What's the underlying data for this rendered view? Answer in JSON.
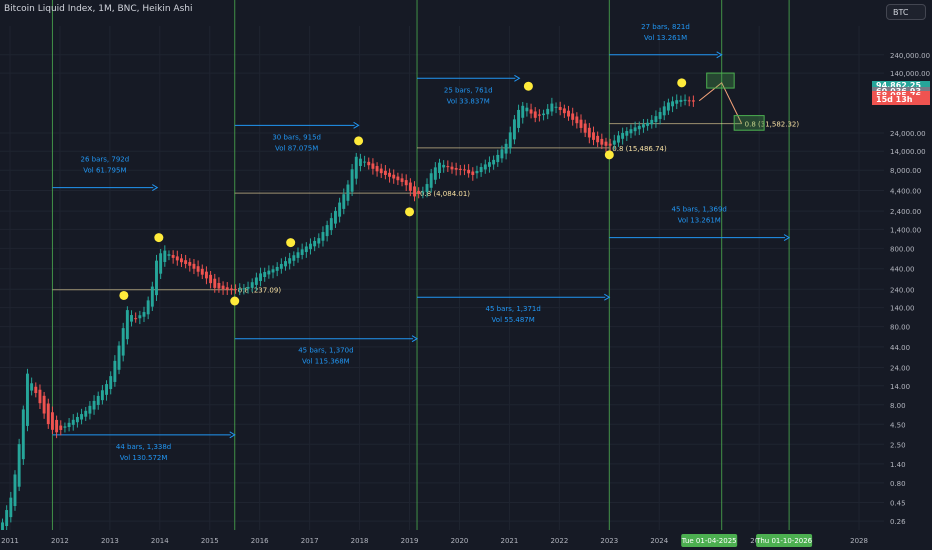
{
  "header": {
    "title": "Bitcoin Liquid Index, 1M, BNC, Heikin Ashi"
  },
  "symbol_button": "BTC",
  "colors": {
    "background": "#161a25",
    "grid": "#1f2430",
    "up": "#26a69a",
    "down": "#ef5350",
    "cycle_line": "#4caf50",
    "arrow": "#2196f3",
    "marker": "#ffeb3b",
    "fib": "#f7e0a3",
    "projection": "#f6a37a"
  },
  "price_tags": [
    {
      "text": "94,862.25",
      "color": "#26a69a"
    },
    {
      "text": "60,036.93",
      "color": "#787b86"
    },
    {
      "text": "58,085.76",
      "color": "#ef5350"
    },
    {
      "text": "15d 13h",
      "color": "#ef5350"
    }
  ],
  "chart_data": {
    "type": "candlestick",
    "title": "Bitcoin Liquid Index, 1M, BNC, Heikin Ashi",
    "y_scale": "log",
    "ylim": [
      0.2,
      560000
    ],
    "xlim": [
      2010.8,
      2028.5
    ],
    "x_ticks": [
      {
        "label": "2011",
        "x": 2011
      },
      {
        "label": "2012",
        "x": 2012
      },
      {
        "label": "2013",
        "x": 2013
      },
      {
        "label": "2014",
        "x": 2014
      },
      {
        "label": "2015",
        "x": 2015
      },
      {
        "label": "2016",
        "x": 2016
      },
      {
        "label": "2017",
        "x": 2017
      },
      {
        "label": "2018",
        "x": 2018
      },
      {
        "label": "2019",
        "x": 2019
      },
      {
        "label": "2020",
        "x": 2020
      },
      {
        "label": "2021",
        "x": 2021
      },
      {
        "label": "2022",
        "x": 2022
      },
      {
        "label": "2023",
        "x": 2023
      },
      {
        "label": "2024",
        "x": 2024
      },
      {
        "label": "2026",
        "x": 2026
      },
      {
        "label": "2028",
        "x": 2028
      }
    ],
    "x_tag_labels": [
      {
        "label": "Tue 01-04-2025",
        "x": 2025.0
      },
      {
        "label": "Thu 01-10-2026",
        "x": 2026.5
      }
    ],
    "y_ticks": [
      {
        "label": "240,000.00",
        "v": 240000
      },
      {
        "label": "140,000.00",
        "v": 140000
      },
      {
        "label": "24,000.00",
        "v": 24000
      },
      {
        "label": "14,000.00",
        "v": 14000
      },
      {
        "label": "8,000.00",
        "v": 8000
      },
      {
        "label": "4,400.00",
        "v": 4400
      },
      {
        "label": "2,400.00",
        "v": 2400
      },
      {
        "label": "1,400.00",
        "v": 1400
      },
      {
        "label": "800.00",
        "v": 800
      },
      {
        "label": "440.00",
        "v": 440
      },
      {
        "label": "240.00",
        "v": 240
      },
      {
        "label": "140.00",
        "v": 140
      },
      {
        "label": "80.00",
        "v": 80
      },
      {
        "label": "44.00",
        "v": 44
      },
      {
        "label": "24.00",
        "v": 24
      },
      {
        "label": "14.00",
        "v": 14
      },
      {
        "label": "8.00",
        "v": 8
      },
      {
        "label": "4.50",
        "v": 4.5
      },
      {
        "label": "2.50",
        "v": 2.5
      },
      {
        "label": "1.40",
        "v": 1.4
      },
      {
        "label": "0.80",
        "v": 0.8
      },
      {
        "label": "0.45",
        "v": 0.45
      },
      {
        "label": "0.26",
        "v": 0.26
      }
    ],
    "price_keypoints": [
      [
        2010.85,
        0.25
      ],
      [
        2011.05,
        0.6
      ],
      [
        2011.2,
        3
      ],
      [
        2011.35,
        20
      ],
      [
        2011.5,
        12
      ],
      [
        2011.65,
        7
      ],
      [
        2011.8,
        4
      ],
      [
        2011.95,
        3.5
      ],
      [
        2012.2,
        4.8
      ],
      [
        2012.5,
        6.5
      ],
      [
        2012.8,
        11
      ],
      [
        2013.0,
        17
      ],
      [
        2013.2,
        50
      ],
      [
        2013.35,
        130
      ],
      [
        2013.5,
        100
      ],
      [
        2013.7,
        125
      ],
      [
        2013.85,
        260
      ],
      [
        2013.95,
        650
      ],
      [
        2014.1,
        750
      ],
      [
        2014.3,
        580
      ],
      [
        2014.6,
        480
      ],
      [
        2014.9,
        350
      ],
      [
        2015.1,
        250
      ],
      [
        2015.4,
        235
      ],
      [
        2015.55,
        240
      ],
      [
        2015.75,
        250
      ],
      [
        2016.0,
        380
      ],
      [
        2016.3,
        440
      ],
      [
        2016.6,
        600
      ],
      [
        2016.9,
        820
      ],
      [
        2017.2,
        1100
      ],
      [
        2017.5,
        2300
      ],
      [
        2017.75,
        4800
      ],
      [
        2017.92,
        12000
      ],
      [
        2018.05,
        11000
      ],
      [
        2018.3,
        8000
      ],
      [
        2018.6,
        6600
      ],
      [
        2018.9,
        5500
      ],
      [
        2019.1,
        3700
      ],
      [
        2019.3,
        4400
      ],
      [
        2019.45,
        7800
      ],
      [
        2019.6,
        10000
      ],
      [
        2019.85,
        8200
      ],
      [
        2020.1,
        8000
      ],
      [
        2020.25,
        6800
      ],
      [
        2020.45,
        9000
      ],
      [
        2020.7,
        11000
      ],
      [
        2020.95,
        18000
      ],
      [
        2021.15,
        45000
      ],
      [
        2021.3,
        56000
      ],
      [
        2021.5,
        37000
      ],
      [
        2021.7,
        43000
      ],
      [
        2021.85,
        57000
      ],
      [
        2022.1,
        43000
      ],
      [
        2022.35,
        32000
      ],
      [
        2022.6,
        21000
      ],
      [
        2022.85,
        17000
      ],
      [
        2023.0,
        16000
      ],
      [
        2023.2,
        23000
      ],
      [
        2023.5,
        28000
      ],
      [
        2023.8,
        33000
      ],
      [
        2024.0,
        43000
      ],
      [
        2024.15,
        58000
      ],
      [
        2024.35,
        63000
      ],
      [
        2024.55,
        64000
      ],
      [
        2024.7,
        60000
      ],
      [
        2024.75,
        58085
      ]
    ],
    "cycle_lines_x": [
      2011.85,
      2015.5,
      2019.15,
      2023.0,
      2025.25,
      2026.6
    ],
    "markers": [
      {
        "x": 2013.28,
        "v": 200
      },
      {
        "x": 2013.98,
        "v": 1100
      },
      {
        "x": 2015.5,
        "v": 170
      },
      {
        "x": 2016.62,
        "v": 950
      },
      {
        "x": 2017.98,
        "v": 19000
      },
      {
        "x": 2019.0,
        "v": 2350
      },
      {
        "x": 2021.38,
        "v": 95000
      },
      {
        "x": 2023.0,
        "v": 12600
      },
      {
        "x": 2024.45,
        "v": 105000
      }
    ],
    "fib_levels": [
      {
        "label": "0.8 (237.09)",
        "v": 237.09,
        "x0": 2011.85,
        "x1": 2015.5
      },
      {
        "label": "0.8 (4,084.01)",
        "v": 4084.01,
        "x0": 2015.5,
        "x1": 2019.15
      },
      {
        "label": "0.8 (15,486.74)",
        "v": 15486.74,
        "x0": 2019.15,
        "x1": 2023.0
      },
      {
        "label": "0.8 (31,582.32)",
        "v": 31582.32,
        "x0": 2023.0,
        "x1": 2025.65
      }
    ],
    "range_annotations": [
      {
        "bars": "26 bars, 792d",
        "vol": "Vol 61.795M",
        "x0": 2011.85,
        "x1": 2013.95,
        "v": 4800,
        "text_above": true
      },
      {
        "bars": "44 bars, 1,338d",
        "vol": "Vol 130.572M",
        "x0": 2011.85,
        "x1": 2015.5,
        "v": 3.3,
        "text_above": false
      },
      {
        "bars": "30 bars, 915d",
        "vol": "Vol 87.075M",
        "x0": 2015.5,
        "x1": 2017.98,
        "v": 30000,
        "text_above": false
      },
      {
        "bars": "45 bars, 1,370d",
        "vol": "Vol 115.368M",
        "x0": 2015.5,
        "x1": 2019.15,
        "v": 56,
        "text_above": false
      },
      {
        "bars": "25 bars, 761d",
        "vol": "Vol 33.837M",
        "x0": 2019.15,
        "x1": 2021.2,
        "v": 120000,
        "text_above": false
      },
      {
        "bars": "45 bars, 1,371d",
        "vol": "Vol 55.487M",
        "x0": 2019.15,
        "x1": 2023.0,
        "v": 190,
        "text_above": false
      },
      {
        "bars": "27 bars, 821d",
        "vol": "Vol 13.261M",
        "x0": 2023.0,
        "x1": 2025.25,
        "v": 240000,
        "text_above": true
      },
      {
        "bars": "45 bars, 1,369d",
        "vol": "Vol 13.261M",
        "x0": 2023.0,
        "x1": 2026.6,
        "v": 1100,
        "text_above": true
      }
    ],
    "projection_path": [
      [
        2024.8,
        62000
      ],
      [
        2025.25,
        105000
      ],
      [
        2025.65,
        31582.32
      ]
    ]
  }
}
